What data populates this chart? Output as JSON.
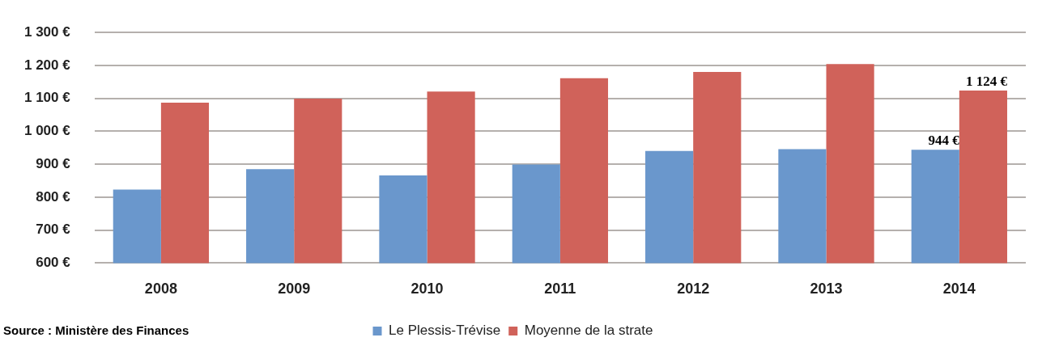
{
  "chart_data": {
    "type": "bar",
    "categories": [
      "2008",
      "2009",
      "2010",
      "2011",
      "2012",
      "2013",
      "2014"
    ],
    "series": [
      {
        "name": "Le Plessis-Trévise",
        "color": "#6a97cc",
        "values": [
          823,
          885,
          866,
          899,
          940,
          946,
          944
        ],
        "value_labels": [
          null,
          null,
          null,
          null,
          null,
          null,
          "944 €"
        ]
      },
      {
        "name": "Moyenne de la strate",
        "color": "#d0625a",
        "values": [
          1087,
          1099,
          1121,
          1161,
          1180,
          1204,
          1124
        ],
        "value_labels": [
          null,
          null,
          null,
          null,
          null,
          null,
          "1 124 €"
        ]
      }
    ],
    "ylim": [
      600,
      1300
    ],
    "yticks": [
      {
        "value": 600,
        "label": "600 €"
      },
      {
        "value": 700,
        "label": "700 €"
      },
      {
        "value": 800,
        "label": "800 €"
      },
      {
        "value": 900,
        "label": "900 €"
      },
      {
        "value": 1000,
        "label": "1 000 €"
      },
      {
        "value": 1100,
        "label": "1 100 €"
      },
      {
        "value": 1200,
        "label": "1 200 €"
      },
      {
        "value": 1300,
        "label": "1 300 €"
      }
    ],
    "grid": "y",
    "legend": "bottom",
    "annotations": [
      "Source : Ministère des Finances"
    ]
  }
}
